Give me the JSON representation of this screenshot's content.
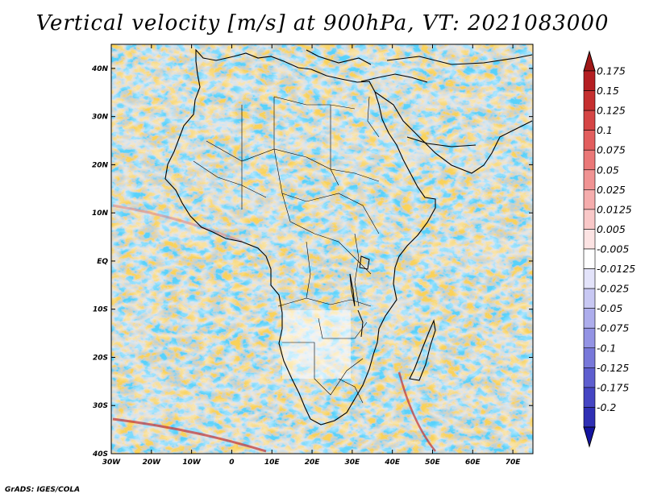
{
  "title": "Vertical velocity [m/s] at 900hPa, VT: 2021083000",
  "credit": "GrADS: IGES/COLA",
  "map": {
    "lon_range": [
      -30,
      75
    ],
    "lat_range": [
      -40,
      45
    ],
    "x_ticks": [
      "30W",
      "20W",
      "10W",
      "0",
      "10E",
      "20E",
      "30E",
      "40E",
      "50E",
      "60E",
      "70E"
    ],
    "x_tick_values": [
      -30,
      -20,
      -10,
      0,
      10,
      20,
      30,
      40,
      50,
      60,
      70
    ],
    "y_ticks": [
      "40N",
      "30N",
      "20N",
      "10N",
      "EQ",
      "10S",
      "20S",
      "30S",
      "40S"
    ],
    "y_tick_values": [
      40,
      30,
      20,
      10,
      0,
      -10,
      -20,
      -30,
      -40
    ]
  },
  "colorbar": {
    "labels": [
      "0.175",
      "0.15",
      "0.125",
      "0.1",
      "0.075",
      "0.05",
      "0.025",
      "0.0125",
      "0.005",
      "-0.005",
      "-0.0125",
      "-0.025",
      "-0.05",
      "-0.075",
      "-0.1",
      "-0.125",
      "-0.175",
      "-0.2"
    ],
    "colors": [
      "#b41e22",
      "#c52f2f",
      "#d54545",
      "#e25e5e",
      "#ea7878",
      "#f09393",
      "#f5adad",
      "#f9c8c8",
      "#fce3e3",
      "#ffffff",
      "#e3e3fa",
      "#c8c8f3",
      "#adadec",
      "#9393e4",
      "#7878da",
      "#5e5ecf",
      "#4545c3",
      "#2f2fb4",
      "#1e1ea0"
    ],
    "top_color": "#a01818",
    "bottom_color": "#1414a0"
  },
  "colors": {
    "land_outline": "#000000",
    "frame": "#000000"
  }
}
